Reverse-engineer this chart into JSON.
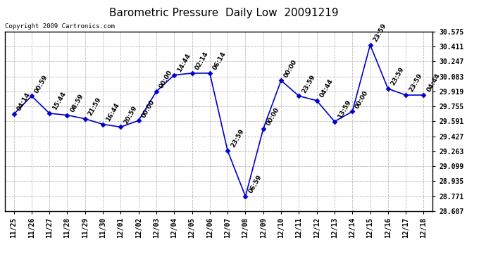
{
  "title": "Barometric Pressure  Daily Low  20091219",
  "copyright": "Copyright 2009 Cartronics.com",
  "x_labels": [
    "11/25",
    "11/26",
    "11/27",
    "11/28",
    "11/29",
    "11/30",
    "12/01",
    "12/02",
    "12/03",
    "12/04",
    "12/05",
    "12/06",
    "12/07",
    "12/08",
    "12/09",
    "12/10",
    "12/11",
    "12/12",
    "12/13",
    "12/14",
    "12/15",
    "12/16",
    "12/17",
    "12/18"
  ],
  "y_values": [
    29.67,
    29.87,
    29.68,
    29.66,
    29.62,
    29.56,
    29.53,
    29.6,
    29.92,
    30.1,
    30.12,
    30.12,
    29.27,
    28.77,
    29.51,
    30.04,
    29.87,
    29.82,
    29.59,
    29.7,
    30.43,
    29.95,
    29.88,
    29.88
  ],
  "time_labels": [
    "04:14",
    "00:59",
    "15:44",
    "08:59",
    "21:59",
    "16:44",
    "20:59",
    "00:00",
    "00:00",
    "14:44",
    "02:14",
    "06:14",
    "23:59",
    "06:59",
    "00:00",
    "00:00",
    "23:59",
    "04:44",
    "13:59",
    "00:00",
    "23:59",
    "23:59",
    "23:59",
    "04:44"
  ],
  "ylim_min": 28.607,
  "ylim_max": 30.575,
  "yticks": [
    28.607,
    28.771,
    28.935,
    29.099,
    29.263,
    29.427,
    29.591,
    29.755,
    29.919,
    30.083,
    30.247,
    30.411,
    30.575
  ],
  "line_color": "#0000cc",
  "marker_color": "#0000cc",
  "bg_color": "#ffffff",
  "grid_color": "#bbbbbb",
  "title_fontsize": 11,
  "tick_fontsize": 7,
  "label_fontsize": 6.5,
  "copyright_fontsize": 6.5
}
